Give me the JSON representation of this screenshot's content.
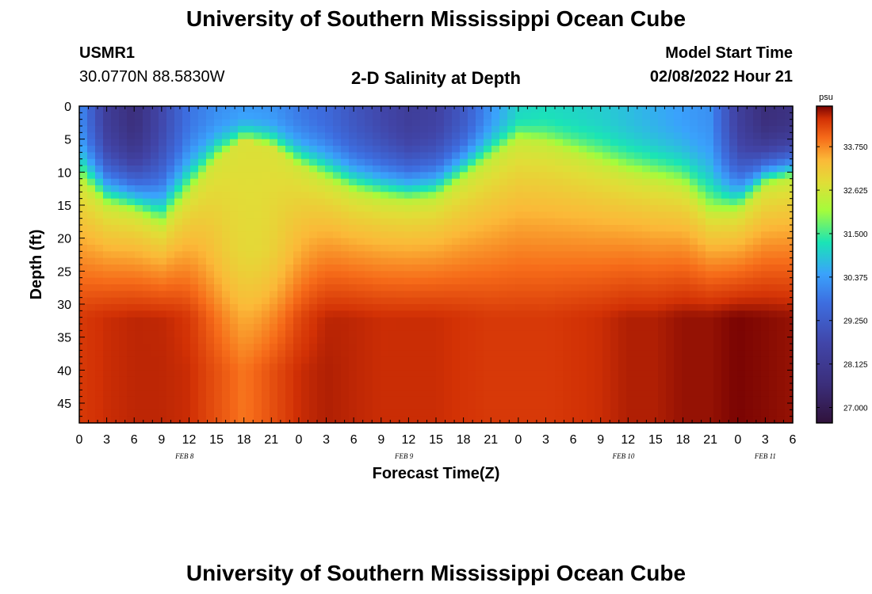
{
  "page": {
    "title": "University of Southern Mississippi Ocean Cube",
    "station_id": "USMR1",
    "coordinates": "30.0770N  88.5830W",
    "subtitle": "2-D Salinity at Depth",
    "model_start_label": "Model Start Time",
    "model_start_value": "02/08/2022 Hour 21",
    "footer_title": "University of Southern Mississippi Ocean Cube"
  },
  "chart_data": {
    "type": "heatmap",
    "title": "2-D Salinity at Depth",
    "xlabel": "Forecast Time(Z)",
    "ylabel": "Depth (ft)",
    "x_range_hours": [
      0,
      78
    ],
    "y_range_ft": [
      0,
      48
    ],
    "x_tick_labels": [
      "0",
      "3",
      "6",
      "9",
      "12",
      "15",
      "18",
      "21",
      "0",
      "3",
      "6",
      "9",
      "12",
      "15",
      "18",
      "21",
      "0",
      "3",
      "6",
      "9",
      "12",
      "15",
      "18",
      "21",
      "0",
      "3",
      "6"
    ],
    "y_tick_labels": [
      "0",
      "5",
      "10",
      "15",
      "20",
      "25",
      "30",
      "35",
      "40",
      "45"
    ],
    "y_tick_values": [
      0,
      5,
      10,
      15,
      20,
      25,
      30,
      35,
      40,
      45
    ],
    "day_labels": [
      {
        "label": "FEB 8",
        "hour": 11.5
      },
      {
        "label": "FEB 9",
        "hour": 35.5
      },
      {
        "label": "FEB 10",
        "hour": 59.5
      },
      {
        "label": "FEB 11",
        "hour": 75
      }
    ],
    "colorbar": {
      "unit": "psu",
      "min": 26.6,
      "max": 34.8,
      "tick_labels": [
        "33.750",
        "32.625",
        "31.500",
        "30.375",
        "29.250",
        "28.125",
        "27.000"
      ],
      "tick_values": [
        33.75,
        32.625,
        31.5,
        30.375,
        29.25,
        28.125,
        27.0
      ]
    },
    "field": {
      "time_hours": [
        0,
        3,
        6,
        9,
        12,
        15,
        18,
        21,
        24,
        27,
        30,
        33,
        36,
        39,
        42,
        45,
        48,
        51,
        54,
        57,
        60,
        63,
        66,
        69,
        72,
        75,
        78
      ],
      "halocline_depth_ft": [
        11,
        15,
        16,
        18,
        13,
        8,
        5,
        6,
        9,
        11,
        13,
        14,
        14.5,
        14,
        11,
        8,
        5,
        5.5,
        7,
        8.5,
        10,
        11,
        12,
        16,
        16,
        12,
        11
      ],
      "surface_salinity_psu": [
        30.2,
        28.3,
        27.6,
        28.7,
        29.8,
        30.2,
        30.4,
        30.3,
        29.9,
        29.6,
        29.1,
        28.7,
        28.3,
        28.5,
        29.2,
        30.3,
        31.1,
        31.2,
        31.1,
        31.0,
        30.8,
        30.6,
        30.4,
        30.2,
        28.4,
        27.6,
        27.8
      ],
      "bottom_salinity_psu": [
        34.4,
        34.5,
        34.55,
        34.55,
        34.5,
        34.2,
        33.9,
        34.2,
        34.5,
        34.6,
        34.55,
        34.5,
        34.5,
        34.5,
        34.45,
        34.4,
        34.4,
        34.4,
        34.45,
        34.5,
        34.6,
        34.6,
        34.7,
        34.7,
        34.8,
        34.75,
        34.7
      ],
      "tongue_center_hour": 19,
      "tongue_width_hours": 5,
      "tongue_bottom_ft": 40,
      "tongue_salinity_psu": 32.8
    }
  }
}
